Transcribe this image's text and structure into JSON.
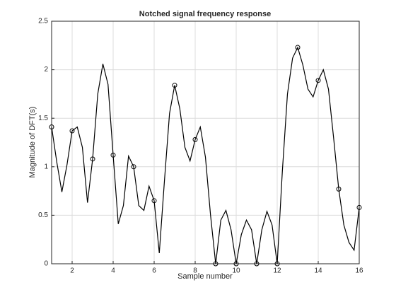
{
  "chart_data": {
    "type": "line",
    "title": "Notched signal frequency response",
    "x_label": "Sample number",
    "y_label": "Magnitude of DFT(s)",
    "xlim": [
      1,
      16
    ],
    "ylim": [
      0,
      2.5
    ],
    "xticks": [
      2,
      4,
      6,
      8,
      10,
      12,
      14,
      16
    ],
    "yticks": [
      0,
      0.5,
      1,
      1.5,
      2,
      2.5
    ],
    "grid": true,
    "series": [
      {
        "style": "line",
        "color": "#000000",
        "x": [
          1,
          1.25,
          1.5,
          1.75,
          2,
          2.25,
          2.5,
          2.75,
          3,
          3.25,
          3.5,
          3.75,
          4,
          4.25,
          4.5,
          4.75,
          5,
          5.25,
          5.5,
          5.75,
          6,
          6.25,
          6.5,
          6.75,
          7,
          7.25,
          7.5,
          7.75,
          8,
          8.25,
          8.5,
          8.75,
          9,
          9.25,
          9.5,
          9.75,
          10,
          10.25,
          10.5,
          10.75,
          11,
          11.25,
          11.5,
          11.75,
          12,
          12.25,
          12.5,
          12.75,
          13,
          13.25,
          13.5,
          13.75,
          14,
          14.25,
          14.5,
          14.75,
          15,
          15.25,
          15.5,
          15.75,
          16
        ],
        "values": [
          1.41,
          1.05,
          0.74,
          1.02,
          1.37,
          1.41,
          1.2,
          0.63,
          1.08,
          1.75,
          2.06,
          1.85,
          1.12,
          0.41,
          0.6,
          1.11,
          1.0,
          0.6,
          0.55,
          0.8,
          0.65,
          0.11,
          0.85,
          1.55,
          1.84,
          1.6,
          1.2,
          1.06,
          1.28,
          1.41,
          1.1,
          0.5,
          0,
          0.45,
          0.55,
          0.35,
          0,
          0.3,
          0.45,
          0.35,
          0,
          0.35,
          0.54,
          0.4,
          0,
          0.95,
          1.75,
          2.12,
          2.23,
          2.05,
          1.8,
          1.72,
          1.89,
          2.0,
          1.8,
          1.3,
          0.77,
          0.4,
          0.22,
          0.14,
          0.58
        ]
      },
      {
        "style": "markers",
        "color": "#000000",
        "x": [
          1,
          2,
          3,
          4,
          5,
          6,
          7,
          8,
          9,
          10,
          11,
          12,
          13,
          14,
          15,
          16
        ],
        "values": [
          1.41,
          1.37,
          1.08,
          1.12,
          1.0,
          0.65,
          1.84,
          1.28,
          0,
          0,
          0,
          0,
          2.23,
          1.89,
          0.77,
          0.58
        ]
      }
    ]
  }
}
